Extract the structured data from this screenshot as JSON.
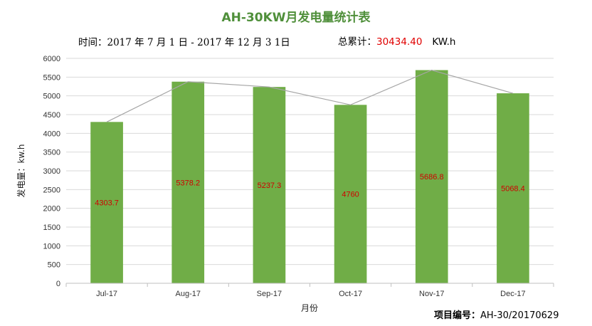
{
  "header": {
    "title": "AH-30KW月发电量统计表",
    "period": "时间：2017 年 7 月 1 日 - 2017 年 12 月 3 1日",
    "total_label": "总累计：",
    "total_value": "30434.40",
    "total_unit": "KW.h"
  },
  "footer": {
    "project_label": "项目编号：",
    "project_value": "AH-30/20170629"
  },
  "colors": {
    "bar": "#70ad47",
    "line": "#a6a6a6",
    "label": "#d00000",
    "grid": "#d9d9d9",
    "title": "#4f8f3a"
  },
  "chart_data": {
    "type": "bar",
    "categories": [
      "Jul-17",
      "Aug-17",
      "Sep-17",
      "Oct-17",
      "Nov-17",
      "Dec-17"
    ],
    "values": [
      4303.7,
      5378.2,
      5237.3,
      4760,
      5686.8,
      5068.4
    ],
    "data_labels": [
      "4303.7",
      "5378.2",
      "5237.3",
      "4760",
      "5686.8",
      "5068.4"
    ],
    "overlay": "line",
    "xlabel": "月份",
    "ylabel": "发电量：kw.h",
    "ylim": [
      0,
      6000
    ],
    "yticks": [
      0,
      500,
      1000,
      1500,
      2000,
      2500,
      3000,
      3500,
      4000,
      4500,
      5000,
      5500,
      6000
    ],
    "grid": true,
    "legend": "none"
  }
}
